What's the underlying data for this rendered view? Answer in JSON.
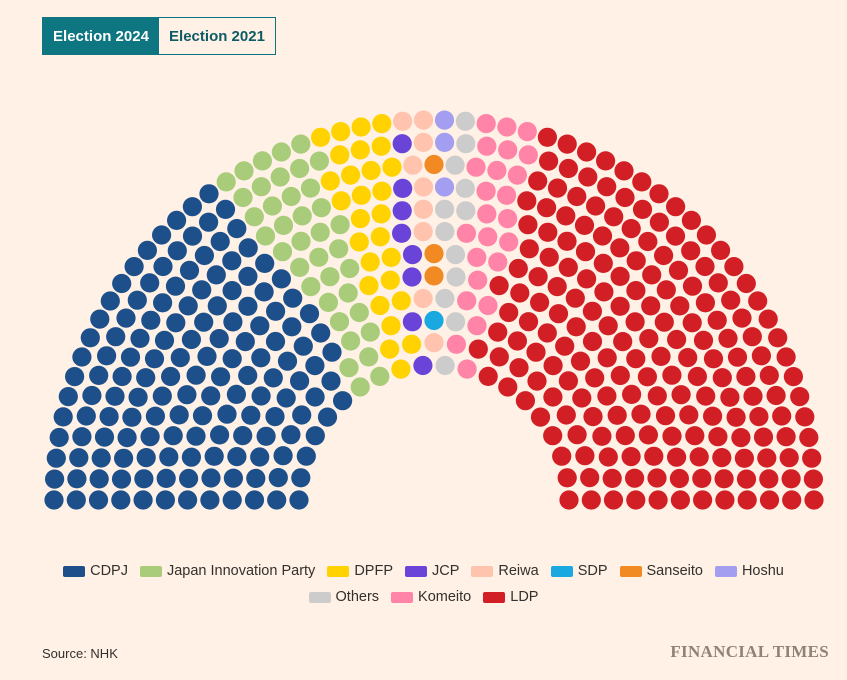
{
  "tabs": [
    {
      "label": "Election 2024",
      "active": true
    },
    {
      "label": "Election 2021",
      "active": false
    }
  ],
  "chart_data": {
    "type": "parliament",
    "total_seats": 465,
    "parties": [
      {
        "name": "CDPJ",
        "seats": 148,
        "color": "#1d4f8b"
      },
      {
        "name": "Japan Innovation Party",
        "seats": 38,
        "color": "#a8cc7a"
      },
      {
        "name": "DPFP",
        "seats": 28,
        "color": "#ffd200"
      },
      {
        "name": "JCP",
        "seats": 8,
        "color": "#6a44d8"
      },
      {
        "name": "Reiwa",
        "seats": 9,
        "color": "#ffc3ae"
      },
      {
        "name": "SDP",
        "seats": 1,
        "color": "#1aa8e0"
      },
      {
        "name": "Sanseito",
        "seats": 3,
        "color": "#f28a24"
      },
      {
        "name": "Hoshu",
        "seats": 3,
        "color": "#a39ef0"
      },
      {
        "name": "Others",
        "seats": 12,
        "color": "#cccccc"
      },
      {
        "name": "Komeito",
        "seats": 24,
        "color": "#ff84a8"
      },
      {
        "name": "LDP",
        "seats": 191,
        "color": "#d21f25"
      }
    ],
    "legend_placement": "bottom-center"
  },
  "source": "Source: NHK",
  "brand": "FINANCIAL TIMES"
}
